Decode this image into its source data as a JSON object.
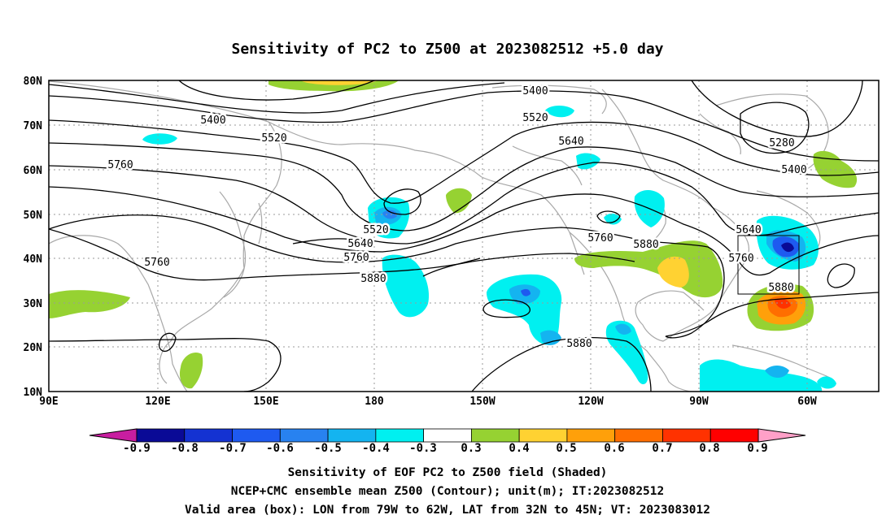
{
  "title": "Sensitivity of PC2 to Z500 at 2023082512 +5.0 day",
  "map": {
    "lat_labels": [
      "80N",
      "70N",
      "60N",
      "50N",
      "40N",
      "30N",
      "20N",
      "10N"
    ],
    "lon_labels": [
      "90E",
      "120E",
      "150E",
      "180",
      "150W",
      "120W",
      "90W",
      "60W"
    ],
    "contour_labels": [
      "5400",
      "5400",
      "5520",
      "5520",
      "5520",
      "5640",
      "5640",
      "5640",
      "5760",
      "5760",
      "5760",
      "5760",
      "5760",
      "5880",
      "5880",
      "5880",
      "5880",
      "5280",
      "5400"
    ],
    "valid_box": {
      "lon_from": "79W",
      "lon_to": "62W",
      "lat_from": "32N",
      "lat_to": "45N"
    }
  },
  "colorbar": {
    "labels": [
      "-0.9",
      "-0.8",
      "-0.7",
      "-0.6",
      "-0.5",
      "-0.4",
      "-0.3",
      "0.3",
      "0.4",
      "0.5",
      "0.6",
      "0.7",
      "0.8",
      "0.9"
    ],
    "colors": [
      "#c81ea0",
      "#0a0a96",
      "#1432d2",
      "#1e5af0",
      "#2882f0",
      "#14b4f0",
      "#00f0f0",
      "#ffffff",
      "#96d232",
      "#ffd232",
      "#ffa00a",
      "#ff6e00",
      "#ff3200",
      "#ff0000",
      "#ffa0c8"
    ]
  },
  "captions": {
    "line1": "Sensitivity of EOF PC2 to Z500 field (Shaded)",
    "line2": "NCEP+CMC ensemble mean Z500 (Contour); unit(m); IT:2023082512",
    "line3": "Valid area (box): LON from 79W to 62W, LAT from 32N to 45N; VT: 2023083012"
  }
}
